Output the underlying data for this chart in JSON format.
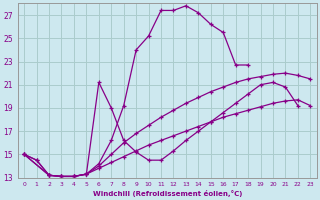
{
  "background_color": "#cde8ef",
  "grid_color": "#aacccc",
  "line_color": "#880088",
  "xlim": [
    -0.5,
    23.5
  ],
  "ylim": [
    13,
    28
  ],
  "xlabel": "Windchill (Refroidissement éolien,°C)",
  "yticks": [
    13,
    15,
    17,
    19,
    21,
    23,
    25,
    27
  ],
  "xticks": [
    0,
    1,
    2,
    3,
    4,
    5,
    6,
    7,
    8,
    9,
    10,
    11,
    12,
    13,
    14,
    15,
    16,
    17,
    18,
    19,
    20,
    21,
    22,
    23
  ],
  "series": [
    {
      "x": [
        0,
        1,
        2,
        3,
        4,
        5,
        6,
        7,
        8,
        9,
        10,
        11,
        12,
        13,
        14,
        15,
        16,
        17,
        18
      ],
      "y": [
        15.0,
        14.5,
        13.2,
        13.1,
        13.1,
        13.3,
        14.2,
        16.2,
        19.2,
        24.0,
        25.2,
        27.4,
        27.4,
        27.8,
        27.2,
        26.2,
        25.5,
        22.7,
        22.7
      ]
    },
    {
      "x": [
        0,
        1,
        2,
        3,
        4,
        5,
        6,
        7,
        8,
        9,
        10,
        11,
        12,
        13,
        14,
        15,
        16,
        17,
        18,
        19,
        20,
        21,
        22
      ],
      "y": [
        15.0,
        14.5,
        13.2,
        13.1,
        13.1,
        13.3,
        21.2,
        19.0,
        16.2,
        15.2,
        14.5,
        14.5,
        15.3,
        16.2,
        17.0,
        17.8,
        18.6,
        19.4,
        20.2,
        21.0,
        21.2,
        20.8,
        19.2
      ]
    },
    {
      "x": [
        0,
        2,
        3,
        4,
        5,
        6,
        7,
        8,
        9,
        10,
        11,
        12,
        13,
        14,
        15,
        16,
        17,
        18,
        19,
        20,
        21,
        22,
        23
      ],
      "y": [
        15.0,
        13.2,
        13.1,
        13.1,
        13.3,
        14.0,
        15.0,
        16.0,
        16.8,
        17.5,
        18.2,
        18.8,
        19.4,
        19.9,
        20.4,
        20.8,
        21.2,
        21.5,
        21.7,
        21.9,
        22.0,
        21.8,
        21.5
      ]
    },
    {
      "x": [
        0,
        2,
        3,
        4,
        5,
        6,
        7,
        8,
        9,
        10,
        11,
        12,
        13,
        14,
        15,
        16,
        17,
        18,
        19,
        20,
        21,
        22,
        23
      ],
      "y": [
        15.0,
        13.2,
        13.1,
        13.1,
        13.3,
        13.8,
        14.3,
        14.8,
        15.3,
        15.8,
        16.2,
        16.6,
        17.0,
        17.4,
        17.8,
        18.2,
        18.5,
        18.8,
        19.1,
        19.4,
        19.6,
        19.7,
        19.2
      ]
    }
  ]
}
